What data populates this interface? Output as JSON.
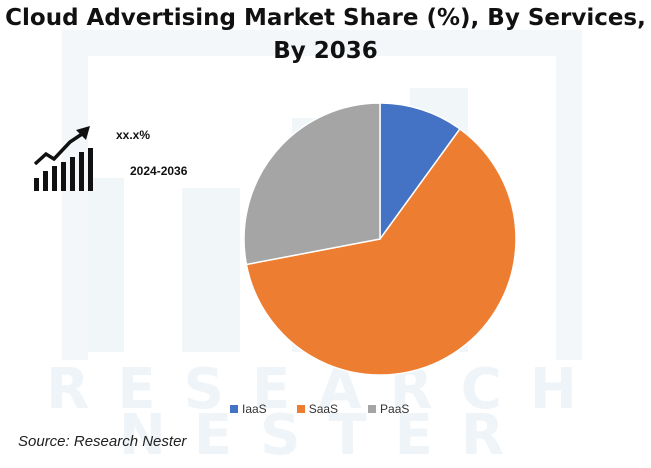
{
  "title_line1": "Cloud Advertising Market Share (%), By Services,",
  "title_line2": "By 2036",
  "cagr_value": "xx.x%",
  "cagr_period": "2024-2036",
  "icon": "growth-chart-icon",
  "watermark": {
    "line1": "RESEARCH",
    "line2": "NESTER"
  },
  "source": "Source: Research Nester",
  "chart_data": {
    "type": "pie",
    "title": "Cloud Advertising Market Share (%), By Services, By 2036",
    "categories": [
      "IaaS",
      "SaaS",
      "PaaS"
    ],
    "values": [
      10,
      62,
      28
    ],
    "colors": [
      "#4472c4",
      "#ed7d31",
      "#a5a5a5"
    ],
    "start_angle_deg": 0,
    "direction": "clockwise",
    "legend_position": "bottom"
  }
}
